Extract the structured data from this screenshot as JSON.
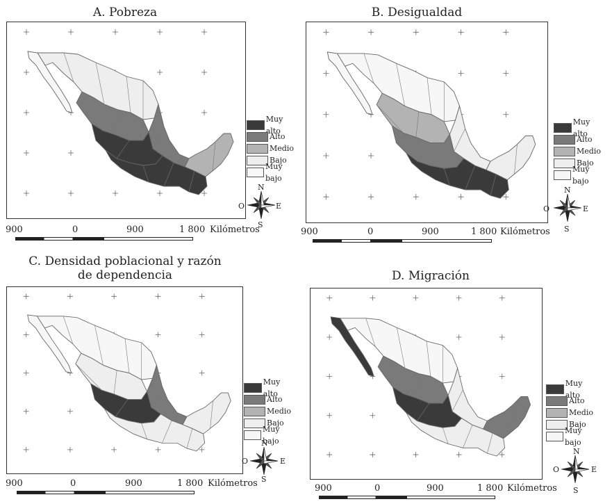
{
  "panels": [
    {
      "title": "A. Pobreza",
      "fills": {
        "north": "lo",
        "centerN": "hi",
        "center": "vhi",
        "south": "vhi",
        "yucatan": "mid",
        "baja": "vlo",
        "east": "hi"
      }
    },
    {
      "title": "B. Desigualdad",
      "fills": {
        "north": "vlo",
        "centerN": "mid",
        "center": "hi",
        "south": "vhi",
        "yucatan": "lo",
        "baja": "vlo",
        "east": "lo"
      }
    },
    {
      "title_line1": "C. Densidad poblacional y razón",
      "title_line2": "de dependencia",
      "fills": {
        "north": "vlo",
        "centerN": "lo",
        "center": "vhi",
        "south": "lo",
        "yucatan": "lo",
        "baja": "vlo",
        "east": "hi"
      }
    },
    {
      "title": "D. Migración",
      "fills": {
        "north": "vlo",
        "centerN": "hi",
        "center": "vhi",
        "south": "lo",
        "yucatan": "hi",
        "baja": "vhi",
        "east": "lo"
      }
    }
  ],
  "legend": [
    "Muy alto",
    "Alto",
    "Medio",
    "Bajo",
    "Muy bajo"
  ],
  "legend_colors": {
    "vhi": "#3a3a3a",
    "hi": "#7a7a7a",
    "mid": "#b3b3b3",
    "lo": "#eeeeee",
    "vlo": "#f7f7f7"
  },
  "compass": {
    "n": "N",
    "s": "S",
    "e": "E",
    "w": "O"
  },
  "scale": {
    "t0": "900",
    "t1": "0",
    "t2": "900",
    "t3": "1 800",
    "unit": "Kilómetros"
  }
}
